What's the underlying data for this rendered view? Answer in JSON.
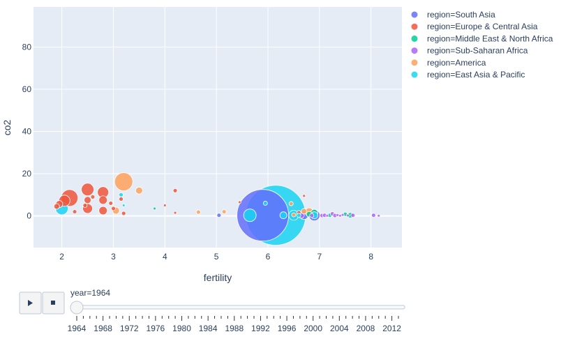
{
  "chart_data": {
    "type": "scatter",
    "xlabel": "fertility",
    "ylabel": "co2",
    "xlim": [
      1.45,
      8.6
    ],
    "ylim": [
      -15,
      99
    ],
    "x_ticks": [
      2,
      3,
      4,
      5,
      6,
      7,
      8
    ],
    "y_ticks": [
      0,
      20,
      40,
      60,
      80
    ],
    "grid": true,
    "legend_position": "right",
    "series": [
      {
        "name": "region=South Asia",
        "color": "#636efa",
        "points": [
          {
            "x": 5.9,
            "y": 0.3,
            "size": 37
          },
          {
            "x": 6.7,
            "y": 0.3,
            "size": 6
          },
          {
            "x": 6.9,
            "y": 0.3,
            "size": 8
          },
          {
            "x": 5.05,
            "y": 0.3,
            "size": 3
          }
        ]
      },
      {
        "name": "region=Europe & Central Asia",
        "color": "#ef553b",
        "points": [
          {
            "x": 2.15,
            "y": 8.5,
            "size": 12
          },
          {
            "x": 2.05,
            "y": 7.2,
            "size": 8
          },
          {
            "x": 1.95,
            "y": 5.6,
            "size": 5
          },
          {
            "x": 1.9,
            "y": 4.5,
            "size": 4
          },
          {
            "x": 2.5,
            "y": 12.5,
            "size": 9
          },
          {
            "x": 2.8,
            "y": 11.2,
            "size": 8
          },
          {
            "x": 2.5,
            "y": 7.5,
            "size": 5
          },
          {
            "x": 2.5,
            "y": 3.5,
            "size": 7
          },
          {
            "x": 2.8,
            "y": 2.5,
            "size": 6
          },
          {
            "x": 2.8,
            "y": 7.5,
            "size": 6
          },
          {
            "x": 2.25,
            "y": 2.0,
            "size": 3
          },
          {
            "x": 2.45,
            "y": 5.0,
            "size": 3
          },
          {
            "x": 2.6,
            "y": 9.0,
            "size": 3
          },
          {
            "x": 2.95,
            "y": 6.0,
            "size": 3
          },
          {
            "x": 3.0,
            "y": 3.5,
            "size": 3
          },
          {
            "x": 3.15,
            "y": 8.0,
            "size": 3
          },
          {
            "x": 3.2,
            "y": 1.2,
            "size": 3
          },
          {
            "x": 4.2,
            "y": 12.0,
            "size": 3
          },
          {
            "x": 4.0,
            "y": 5.0,
            "size": 2
          },
          {
            "x": 4.2,
            "y": 1.5,
            "size": 2
          },
          {
            "x": 5.45,
            "y": 6.5,
            "size": 2
          },
          {
            "x": 6.7,
            "y": 9.5,
            "size": 2
          },
          {
            "x": 6.6,
            "y": 1.5,
            "size": 3
          }
        ]
      },
      {
        "name": "region=Middle East & North Africa",
        "color": "#00cc96",
        "points": [
          {
            "x": 3.8,
            "y": 3.5,
            "size": 2
          },
          {
            "x": 6.9,
            "y": 1.5,
            "size": 5
          },
          {
            "x": 7.5,
            "y": 0.8,
            "size": 3
          },
          {
            "x": 7.6,
            "y": 0.3,
            "size": 4
          },
          {
            "x": 6.8,
            "y": 0.8,
            "size": 4
          },
          {
            "x": 7.2,
            "y": 0.3,
            "size": 3
          }
        ]
      },
      {
        "name": "region=Sub-Saharan Africa",
        "color": "#ab63fa",
        "points": [
          {
            "x": 6.65,
            "y": 0.2,
            "size": 4
          },
          {
            "x": 7.05,
            "y": 0.2,
            "size": 3
          },
          {
            "x": 7.1,
            "y": 0.3,
            "size": 3
          },
          {
            "x": 7.15,
            "y": 0.1,
            "size": 2
          },
          {
            "x": 7.25,
            "y": 1.0,
            "size": 3
          },
          {
            "x": 7.3,
            "y": 0.2,
            "size": 3
          },
          {
            "x": 7.35,
            "y": 0.4,
            "size": 2
          },
          {
            "x": 7.4,
            "y": 0.1,
            "size": 2
          },
          {
            "x": 7.45,
            "y": 0.5,
            "size": 2
          },
          {
            "x": 7.55,
            "y": 0.2,
            "size": 2
          },
          {
            "x": 7.65,
            "y": 0.3,
            "size": 3
          },
          {
            "x": 8.05,
            "y": 0.3,
            "size": 3
          },
          {
            "x": 8.15,
            "y": 0.1,
            "size": 2
          },
          {
            "x": 6.85,
            "y": 0.2,
            "size": 3
          }
        ]
      },
      {
        "name": "region=America",
        "color": "#ffa15a",
        "points": [
          {
            "x": 3.2,
            "y": 16.2,
            "size": 13
          },
          {
            "x": 3.5,
            "y": 12.0,
            "size": 5
          },
          {
            "x": 3.05,
            "y": 2.5,
            "size": 5
          },
          {
            "x": 4.65,
            "y": 1.8,
            "size": 3
          },
          {
            "x": 5.15,
            "y": 2.0,
            "size": 3
          },
          {
            "x": 6.45,
            "y": 5.8,
            "size": 3
          },
          {
            "x": 6.8,
            "y": 1.8,
            "size": 6
          },
          {
            "x": 6.7,
            "y": 2.2,
            "size": 4
          },
          {
            "x": 6.5,
            "y": 0.5,
            "size": 3
          }
        ]
      },
      {
        "name": "region=East Asia & Pacific",
        "color": "#19d3f3",
        "points": [
          {
            "x": 6.15,
            "y": 0.3,
            "size": 43
          },
          {
            "x": 2.0,
            "y": 3.5,
            "size": 9
          },
          {
            "x": 5.65,
            "y": 0.3,
            "size": 9
          },
          {
            "x": 6.5,
            "y": 0.3,
            "size": 7
          },
          {
            "x": 6.3,
            "y": 0.3,
            "size": 5
          },
          {
            "x": 6.9,
            "y": 0.3,
            "size": 5
          },
          {
            "x": 5.95,
            "y": 6.0,
            "size": 3
          },
          {
            "x": 3.15,
            "y": 10.0,
            "size": 3
          },
          {
            "x": 3.2,
            "y": 5.0,
            "size": 2
          },
          {
            "x": 6.6,
            "y": 0.3,
            "size": 3
          }
        ]
      }
    ]
  },
  "slider": {
    "current_label": "year=1964",
    "value": 1964,
    "range": [
      1964,
      2013
    ],
    "tick_labels": [
      "1964",
      "1968",
      "1972",
      "1976",
      "1980",
      "1984",
      "1988",
      "1992",
      "1996",
      "2000",
      "2004",
      "2008",
      "2012"
    ]
  },
  "controls": {
    "play_icon": "play-icon",
    "stop_icon": "stop-icon"
  }
}
